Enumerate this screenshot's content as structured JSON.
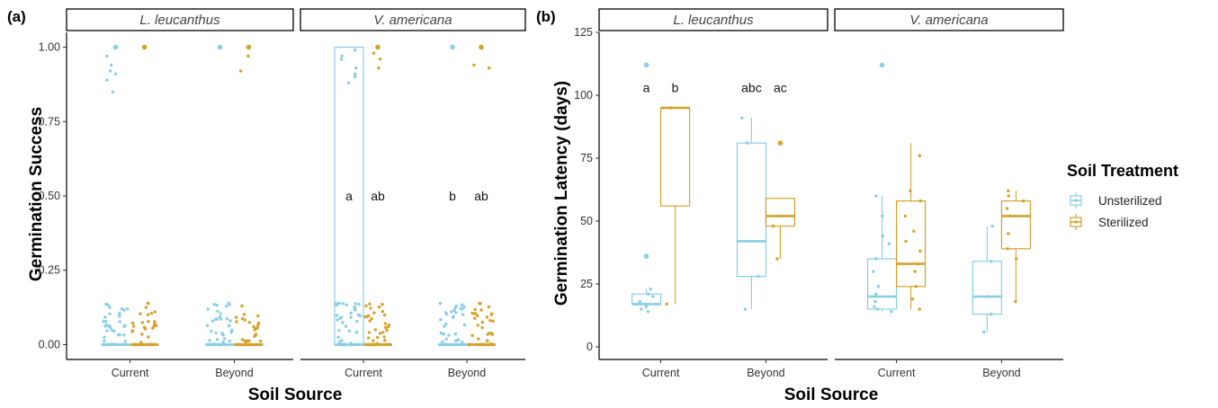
{
  "chart_data": [
    {
      "panel_label": "(a)",
      "type": "box+jitter",
      "xlabel": "Soil Source",
      "ylabel": "Germination Success",
      "ylim": [
        0,
        1
      ],
      "yticks": [
        "0.00",
        "0.25",
        "0.50",
        "0.75",
        "1.00"
      ],
      "categories": [
        "Current",
        "Beyond"
      ],
      "facets": [
        {
          "strip": "L. leucanthus",
          "groups": [
            {
              "source": "Current",
              "treatment": "Unsterilized",
              "box": [
                0,
                0,
                0,
                0,
                0
              ],
              "outliers": [
                1.0
              ],
              "label": "a",
              "high": [
                0.97,
                0.94,
                0.91,
                0.89,
                0.85,
                0.92
              ]
            },
            {
              "source": "Current",
              "treatment": "Sterilized",
              "box": [
                0,
                0,
                0,
                0,
                0
              ],
              "outliers": [
                1.0
              ],
              "label": "ab",
              "high": []
            },
            {
              "source": "Beyond",
              "treatment": "Unsterilized",
              "box": [
                0,
                0,
                0,
                0,
                0
              ],
              "outliers": [
                1.0
              ],
              "label": "b",
              "high": []
            },
            {
              "source": "Beyond",
              "treatment": "Sterilized",
              "box": [
                0,
                0,
                0,
                0,
                0
              ],
              "outliers": [
                1.0
              ],
              "label": "ab",
              "high": [
                0.97,
                0.92
              ]
            }
          ]
        },
        {
          "strip": "V. americana",
          "groups": [
            {
              "source": "Current",
              "treatment": "Unsterilized",
              "box": [
                0,
                0,
                0,
                1,
                1
              ],
              "outliers": [],
              "label": "",
              "high": [
                0.99,
                0.97,
                0.96,
                0.93,
                0.91,
                0.9,
                0.88
              ]
            },
            {
              "source": "Current",
              "treatment": "Sterilized",
              "box": [
                0,
                0,
                0,
                0,
                0
              ],
              "outliers": [
                1.0
              ],
              "label": "",
              "high": [
                0.98,
                0.96,
                0.93
              ]
            },
            {
              "source": "Beyond",
              "treatment": "Unsterilized",
              "box": [
                0,
                0,
                0,
                0,
                0
              ],
              "outliers": [
                1.0
              ],
              "label": "",
              "high": []
            },
            {
              "source": "Beyond",
              "treatment": "Sterilized",
              "box": [
                0,
                0,
                0,
                0,
                0
              ],
              "outliers": [
                1.0
              ],
              "label": "",
              "high": [
                0.94,
                0.93
              ]
            }
          ]
        }
      ]
    },
    {
      "panel_label": "(b)",
      "type": "box+jitter",
      "xlabel": "Soil Source",
      "ylabel": "Germination Latency (days)",
      "ylim": [
        -5,
        125
      ],
      "yticks": [
        "0",
        "25",
        "50",
        "75",
        "100",
        "125"
      ],
      "categories": [
        "Current",
        "Beyond"
      ],
      "facets": [
        {
          "strip": "L. leucanthus",
          "groups": [
            {
              "source": "Current",
              "treatment": "Unsterilized",
              "box": [
                15,
                17,
                17,
                21,
                23
              ],
              "outliers": [
                36,
                112
              ],
              "label": "a",
              "points": [
                15,
                16,
                17,
                18,
                20,
                21,
                23,
                14
              ]
            },
            {
              "source": "Current",
              "treatment": "Sterilized",
              "box": [
                17,
                56,
                95,
                95,
                95
              ],
              "outliers": [],
              "label": "b",
              "points": [
                17,
                95
              ]
            },
            {
              "source": "Beyond",
              "treatment": "Unsterilized",
              "box": [
                15,
                28,
                42,
                81,
                91
              ],
              "outliers": [],
              "label": "abc",
              "points": [
                15,
                28,
                81,
                91
              ]
            },
            {
              "source": "Beyond",
              "treatment": "Sterilized",
              "box": [
                35,
                48,
                52,
                59,
                59
              ],
              "outliers": [
                81
              ],
              "label": "ac",
              "points": [
                35,
                48,
                52
              ]
            }
          ]
        },
        {
          "strip": "V. americana",
          "groups": [
            {
              "source": "Current",
              "treatment": "Unsterilized",
              "box": [
                14,
                15,
                20,
                35,
                60
              ],
              "outliers": [
                112
              ],
              "label": "",
              "points": [
                14,
                15,
                16,
                18,
                20,
                21,
                24,
                30,
                35,
                41,
                44,
                52,
                60
              ]
            },
            {
              "source": "Current",
              "treatment": "Sterilized",
              "box": [
                15,
                24,
                33,
                58,
                81
              ],
              "outliers": [],
              "label": "",
              "points": [
                15,
                19,
                24,
                30,
                33,
                38,
                42,
                46,
                52,
                58,
                62,
                76
              ]
            },
            {
              "source": "Beyond",
              "treatment": "Unsterilized",
              "box": [
                6,
                13,
                20,
                34,
                48
              ],
              "outliers": [],
              "label": "",
              "points": [
                6,
                13,
                20,
                34,
                48
              ]
            },
            {
              "source": "Beyond",
              "treatment": "Sterilized",
              "box": [
                18,
                39,
                52,
                58,
                62
              ],
              "outliers": [],
              "label": "",
              "points": [
                18,
                35,
                39,
                45,
                52,
                55,
                58,
                60,
                62
              ]
            }
          ]
        }
      ]
    }
  ],
  "legend": {
    "title": "Soil Treatment",
    "items": [
      {
        "label": "Unsterilized",
        "color": "#87CEE6"
      },
      {
        "label": "Sterilized",
        "color": "#D4A12A"
      }
    ]
  },
  "colors": {
    "Unsterilized": "#87CEE6",
    "Sterilized": "#D4A12A"
  }
}
